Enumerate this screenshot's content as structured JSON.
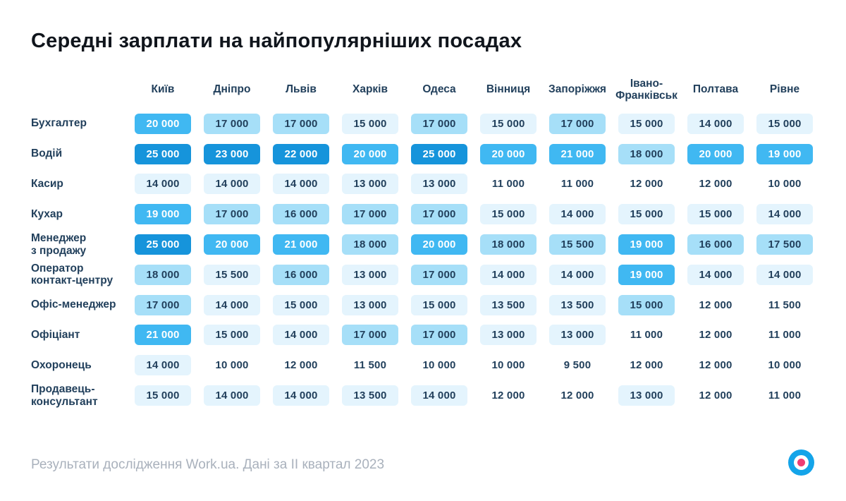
{
  "title": "Середні зарплати на найпопулярніших посадах",
  "footer": {
    "source_note": "Результати дослідження Work.ua. Дані за II квартал 2023"
  },
  "logo": {
    "ring_color": "#14a4e9",
    "dot_color": "#ee3d73"
  },
  "heat_colors": {
    "levels": [
      "transparent",
      "#e4f4fd",
      "#a6dff8",
      "#40b8f2",
      "#1694db"
    ],
    "text_dark": "#22405c",
    "text_light": "#ffffff"
  },
  "chart_data": {
    "type": "heatmap",
    "title": "Середні зарплати на найпопулярніших посадах",
    "xlabel": "",
    "ylabel": "",
    "legend": "none",
    "columns": [
      "Київ",
      "Дніпро",
      "Львів",
      "Харків",
      "Одеса",
      "Вінниця",
      "Запоріжжя",
      "Івано-\nФранківськ",
      "Полтава",
      "Рівне"
    ],
    "rows": [
      {
        "label": "Бухгалтер",
        "values": [
          20000,
          17000,
          17000,
          15000,
          17000,
          15000,
          17000,
          15000,
          14000,
          15000
        ],
        "levels": [
          3,
          2,
          2,
          1,
          2,
          1,
          2,
          1,
          1,
          1
        ]
      },
      {
        "label": "Водій",
        "values": [
          25000,
          23000,
          22000,
          20000,
          25000,
          20000,
          21000,
          18000,
          20000,
          19000
        ],
        "levels": [
          4,
          4,
          4,
          3,
          4,
          3,
          3,
          2,
          3,
          3
        ]
      },
      {
        "label": "Касир",
        "values": [
          14000,
          14000,
          14000,
          13000,
          13000,
          11000,
          11000,
          12000,
          12000,
          10000
        ],
        "levels": [
          1,
          1,
          1,
          1,
          1,
          0,
          0,
          0,
          0,
          0
        ]
      },
      {
        "label": "Кухар",
        "values": [
          19000,
          17000,
          16000,
          17000,
          17000,
          15000,
          14000,
          15000,
          15000,
          14000
        ],
        "levels": [
          3,
          2,
          2,
          2,
          2,
          1,
          1,
          1,
          1,
          1
        ]
      },
      {
        "label": "Менеджер\nз продажу",
        "values": [
          25000,
          20000,
          21000,
          18000,
          20000,
          18000,
          15500,
          19000,
          16000,
          17500
        ],
        "levels": [
          4,
          3,
          3,
          2,
          3,
          2,
          2,
          3,
          2,
          2
        ]
      },
      {
        "label": "Оператор\nконтакт-центру",
        "values": [
          18000,
          15500,
          16000,
          13000,
          17000,
          14000,
          14000,
          19000,
          14000,
          14000
        ],
        "levels": [
          2,
          1,
          2,
          1,
          2,
          1,
          1,
          3,
          1,
          1
        ]
      },
      {
        "label": "Офіс-менеджер",
        "values": [
          17000,
          14000,
          15000,
          13000,
          15000,
          13500,
          13500,
          15000,
          12000,
          11500
        ],
        "levels": [
          2,
          1,
          1,
          1,
          1,
          1,
          1,
          2,
          0,
          0
        ]
      },
      {
        "label": "Офіціант",
        "values": [
          21000,
          15000,
          14000,
          17000,
          17000,
          13000,
          13000,
          11000,
          12000,
          11000
        ],
        "levels": [
          3,
          1,
          1,
          2,
          2,
          1,
          1,
          0,
          0,
          0
        ]
      },
      {
        "label": "Охоронець",
        "values": [
          14000,
          10000,
          12000,
          11500,
          10000,
          10000,
          9500,
          12000,
          12000,
          10000
        ],
        "levels": [
          1,
          0,
          0,
          0,
          0,
          0,
          0,
          0,
          0,
          0
        ]
      },
      {
        "label": "Продавець-\nконсультант",
        "values": [
          15000,
          14000,
          14000,
          13500,
          14000,
          12000,
          12000,
          13000,
          12000,
          11000
        ],
        "levels": [
          1,
          1,
          1,
          1,
          1,
          0,
          0,
          1,
          0,
          0
        ]
      }
    ]
  }
}
